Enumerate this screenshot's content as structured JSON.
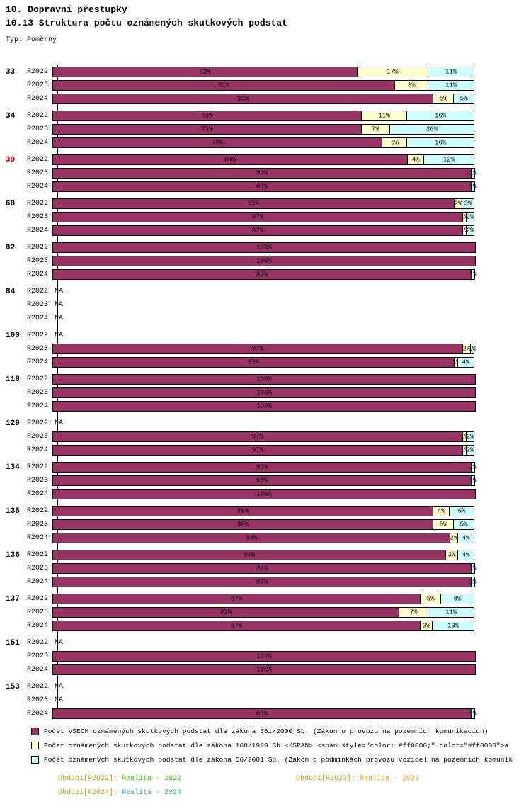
{
  "header": {
    "title1": "10. Dopravní přestupky",
    "title2": "10.13 Struktura počtu oznámených skutkových podstat",
    "type_label": "Typ: Poměrný"
  },
  "colors": {
    "series": [
      "#993366",
      "#FFFFCC",
      "#CCFFFF"
    ],
    "highlight_group_label": "#CC0000",
    "bar_border": "#000000"
  },
  "chart_data": {
    "type": "bar",
    "variant": "horizontal-stacked-percent",
    "unit": "%",
    "xlim": [
      0,
      100
    ],
    "na_label": "NA",
    "legend_position": "bottom",
    "series_names": [
      "zákona 361/2000 Sb.",
      "zákona 168/1999 Sb.",
      "zákona 56/2001 Sb."
    ],
    "periods": [
      "R2022",
      "R2023",
      "R2024"
    ],
    "groups": [
      {
        "id": "33",
        "highlight": false,
        "rows": [
          {
            "period": "R2022",
            "values": [
              72,
              17,
              11
            ]
          },
          {
            "period": "R2023",
            "values": [
              81,
              8,
              11
            ]
          },
          {
            "period": "R2024",
            "values": [
              90,
              5,
              5
            ]
          }
        ]
      },
      {
        "id": "34",
        "highlight": false,
        "rows": [
          {
            "period": "R2022",
            "values": [
              73,
              11,
              16
            ]
          },
          {
            "period": "R2023",
            "values": [
              73,
              7,
              20
            ]
          },
          {
            "period": "R2024",
            "values": [
              78,
              6,
              16
            ]
          }
        ]
      },
      {
        "id": "39",
        "highlight": true,
        "rows": [
          {
            "period": "R2022",
            "values": [
              84,
              4,
              12
            ]
          },
          {
            "period": "R2023",
            "values": [
              99,
              0,
              1
            ]
          },
          {
            "period": "R2024",
            "values": [
              99,
              0,
              1
            ]
          }
        ]
      },
      {
        "id": "60",
        "highlight": false,
        "rows": [
          {
            "period": "R2022",
            "values": [
              95,
              2,
              3
            ]
          },
          {
            "period": "R2023",
            "values": [
              97,
              1,
              2
            ]
          },
          {
            "period": "R2024",
            "values": [
              97,
              1,
              2
            ]
          }
        ]
      },
      {
        "id": "82",
        "highlight": false,
        "rows": [
          {
            "period": "R2022",
            "values": [
              100,
              0,
              0
            ]
          },
          {
            "period": "R2023",
            "values": [
              100,
              0,
              0
            ]
          },
          {
            "period": "R2024",
            "values": [
              99,
              0,
              1
            ]
          }
        ]
      },
      {
        "id": "84",
        "highlight": false,
        "rows": [
          {
            "period": "R2022",
            "na": true
          },
          {
            "period": "R2023",
            "na": true
          },
          {
            "period": "R2024",
            "na": true
          }
        ]
      },
      {
        "id": "100",
        "highlight": false,
        "rows": [
          {
            "period": "R2022",
            "na": true
          },
          {
            "period": "R2023",
            "values": [
              97,
              2,
              1
            ]
          },
          {
            "period": "R2024",
            "values": [
              95,
              1,
              4
            ]
          }
        ]
      },
      {
        "id": "118",
        "highlight": false,
        "rows": [
          {
            "period": "R2022",
            "values": [
              100,
              0,
              0
            ]
          },
          {
            "period": "R2023",
            "values": [
              100,
              0,
              0
            ]
          },
          {
            "period": "R2024",
            "values": [
              100,
              0,
              0
            ]
          }
        ]
      },
      {
        "id": "129",
        "highlight": false,
        "rows": [
          {
            "period": "R2022",
            "na": true
          },
          {
            "period": "R2023",
            "values": [
              97,
              1,
              2
            ]
          },
          {
            "period": "R2024",
            "values": [
              97,
              1,
              2
            ]
          }
        ]
      },
      {
        "id": "134",
        "highlight": false,
        "rows": [
          {
            "period": "R2022",
            "values": [
              99,
              0,
              1
            ]
          },
          {
            "period": "R2023",
            "values": [
              99,
              0,
              1
            ]
          },
          {
            "period": "R2024",
            "values": [
              100,
              0,
              0
            ]
          }
        ]
      },
      {
        "id": "135",
        "highlight": false,
        "rows": [
          {
            "period": "R2022",
            "values": [
              90,
              4,
              6
            ]
          },
          {
            "period": "R2023",
            "values": [
              90,
              5,
              5
            ]
          },
          {
            "period": "R2024",
            "values": [
              94,
              2,
              4
            ]
          }
        ]
      },
      {
        "id": "136",
        "highlight": false,
        "rows": [
          {
            "period": "R2022",
            "values": [
              93,
              3,
              4
            ]
          },
          {
            "period": "R2023",
            "values": [
              99,
              0,
              1
            ]
          },
          {
            "period": "R2024",
            "values": [
              99,
              0,
              1
            ]
          }
        ]
      },
      {
        "id": "137",
        "highlight": false,
        "rows": [
          {
            "period": "R2022",
            "values": [
              87,
              5,
              8
            ]
          },
          {
            "period": "R2023",
            "values": [
              82,
              7,
              11
            ]
          },
          {
            "period": "R2024",
            "values": [
              87,
              3,
              10
            ]
          }
        ]
      },
      {
        "id": "151",
        "highlight": false,
        "rows": [
          {
            "period": "R2022",
            "na": true
          },
          {
            "period": "R2023",
            "values": [
              100,
              0,
              0
            ]
          },
          {
            "period": "R2024",
            "values": [
              100,
              0,
              0
            ]
          }
        ]
      },
      {
        "id": "153",
        "highlight": false,
        "rows": [
          {
            "period": "R2022",
            "na": true
          },
          {
            "period": "R2023",
            "na": true
          },
          {
            "period": "R2024",
            "values": [
              99,
              0,
              1
            ]
          }
        ]
      }
    ]
  },
  "legend": [
    {
      "color": "#993366",
      "label": "Počet VŠECH oznámených skutkových podstat dle zákona 361/2000 Sb. (Zákon o provozu na pozemních komunikacích)"
    },
    {
      "color": "#FFFFCC",
      "label": "Počet oznámených skutkových podstat dle zákona 168/1999 Sb.</SPAN> <span style=\"color: #ff0000;\" color=\"#ff0000\">a"
    },
    {
      "color": "#CCFFFF",
      "label": "Počet oznámených skutkových podstat dle zákona 56/2001 Sb. (Zákon o podmínkách provozu vozidel na pozemních komunik"
    }
  ],
  "periods": [
    {
      "label": "Období[R2022]:",
      "value": "Realita - 2022",
      "label_color": "#CC9900",
      "value_color": "#33CC00"
    },
    {
      "label": "Období[R2023]:",
      "value": "Realita - 2023",
      "label_color": "#CC9900",
      "value_color": "#FF9900"
    },
    {
      "label": "Období[R2024]:",
      "value": "Realita - 2024",
      "label_color": "#CC9900",
      "value_color": "#3399CC"
    }
  ]
}
